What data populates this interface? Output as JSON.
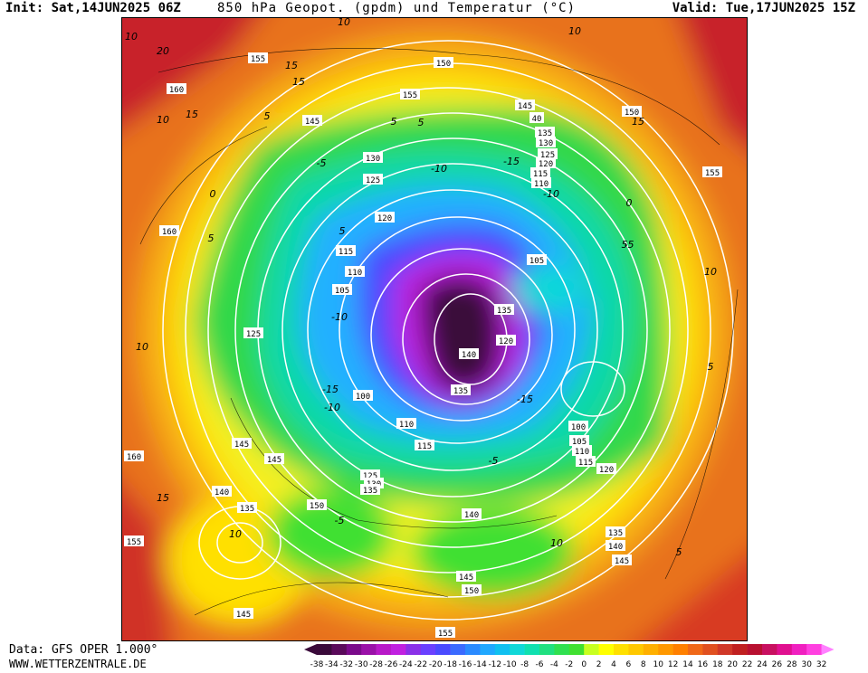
{
  "header": {
    "init": "Init: Sat,14JUN2025 06Z",
    "title": "850 hPa Geopot. (gpdm) und Temperatur (°C)",
    "valid": "Valid: Tue,17JUN2025 15Z"
  },
  "footer": {
    "data_source": "Data: GFS OPER 1.000°",
    "website": "WWW.WETTERZENTRALE.DE"
  },
  "legend": {
    "ticks": [
      "-38",
      "-34",
      "-32",
      "-30",
      "-28",
      "-26",
      "-24",
      "-22",
      "-20",
      "-18",
      "-16",
      "-14",
      "-12",
      "-10",
      "-8",
      "-6",
      "-4",
      "-2",
      "0",
      "2",
      "4",
      "6",
      "8",
      "10",
      "12",
      "14",
      "16",
      "18",
      "20",
      "22",
      "24",
      "26",
      "28",
      "30",
      "32"
    ],
    "colors": [
      "#3a0a3a",
      "#5a0a5a",
      "#7a0a8a",
      "#9a10a8",
      "#b818c8",
      "#c020e0",
      "#8a30e8",
      "#6a40ff",
      "#4a4aff",
      "#3a6aff",
      "#2a8aff",
      "#20a8ff",
      "#10c0f0",
      "#10d8d8",
      "#10e0b0",
      "#20e080",
      "#30e050",
      "#40e030",
      "#c8ff20",
      "#ffff00",
      "#ffe000",
      "#ffc800",
      "#ffb000",
      "#ff9800",
      "#ff8000",
      "#f06818",
      "#e05020",
      "#d03828",
      "#c02020",
      "#b81030",
      "#c81060",
      "#e01090",
      "#f020c0",
      "#ff40e0",
      "#ff80ff"
    ]
  },
  "map_labels": {
    "geopotential": [
      "155",
      "160",
      "150",
      "155",
      "145",
      "150",
      "40",
      "145",
      "135",
      "130",
      "125",
      "120",
      "115",
      "110",
      "155",
      "160",
      "125",
      "130",
      "120",
      "115",
      "110",
      "105",
      "105",
      "125",
      "100",
      "110",
      "115",
      "135",
      "140",
      "120",
      "135",
      "100",
      "105",
      "110",
      "115",
      "120",
      "145",
      "145",
      "125",
      "130",
      "135",
      "160",
      "140",
      "135",
      "150",
      "140",
      "135",
      "140",
      "145",
      "145",
      "150",
      "155",
      "145",
      "155"
    ],
    "temperature": [
      "20",
      "15",
      "10",
      "10",
      "15",
      "5",
      "-5",
      "-10",
      "-15",
      "0",
      "-10",
      "5",
      "10",
      "15",
      "10",
      "5",
      "-10",
      "-15",
      "-10",
      "-5",
      "-15",
      "0",
      "5",
      "10",
      "15",
      "10",
      "5",
      "5",
      "10",
      "5",
      "15",
      "10",
      "-5",
      "5",
      "-5"
    ]
  }
}
